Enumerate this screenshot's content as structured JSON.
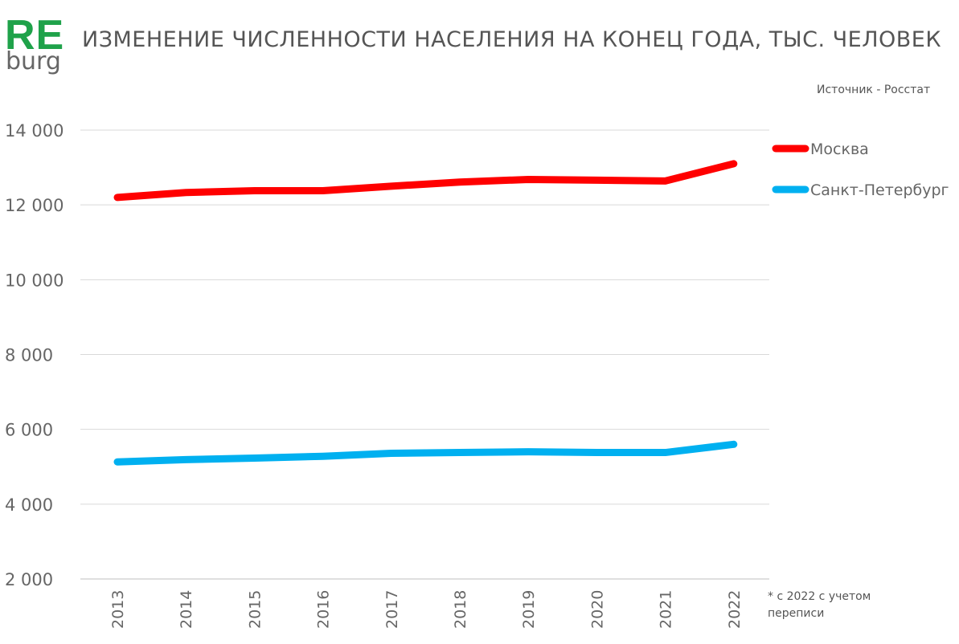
{
  "logo": {
    "top": "RE",
    "bottom": "burg",
    "color": "#1fa24a"
  },
  "title": "ИЗМЕНЕНИЕ ЧИСЛЕННОСТИ НАСЕЛЕНИЯ НА КОНЕЦ ГОДА, ТЫС.  ЧЕЛОВЕК",
  "source": "Источник - Росстат",
  "footnote": "* с 2022 с учетом переписи",
  "chart_data": {
    "type": "line",
    "categories": [
      "2013",
      "2014",
      "2015",
      "2016",
      "2017",
      "2018",
      "2019",
      "2020",
      "2021",
      "2022"
    ],
    "series": [
      {
        "name": "Москва",
        "color": "#ff0000",
        "values": [
          12200,
          12330,
          12380,
          12380,
          12500,
          12610,
          12680,
          12660,
          12640,
          13100
        ]
      },
      {
        "name": "Санкт-Петербург",
        "color": "#00b0f0",
        "values": [
          5130,
          5190,
          5230,
          5280,
          5360,
          5380,
          5400,
          5380,
          5380,
          5600
        ]
      }
    ],
    "yticks": [
      "2 000",
      "4 000",
      "6 000",
      "8 000",
      "10 000",
      "12 000",
      "14 000"
    ],
    "ytick_values": [
      2000,
      4000,
      6000,
      8000,
      10000,
      12000,
      14000
    ],
    "ylim": [
      2000,
      14000
    ],
    "grid": true,
    "legend_position": "right"
  }
}
